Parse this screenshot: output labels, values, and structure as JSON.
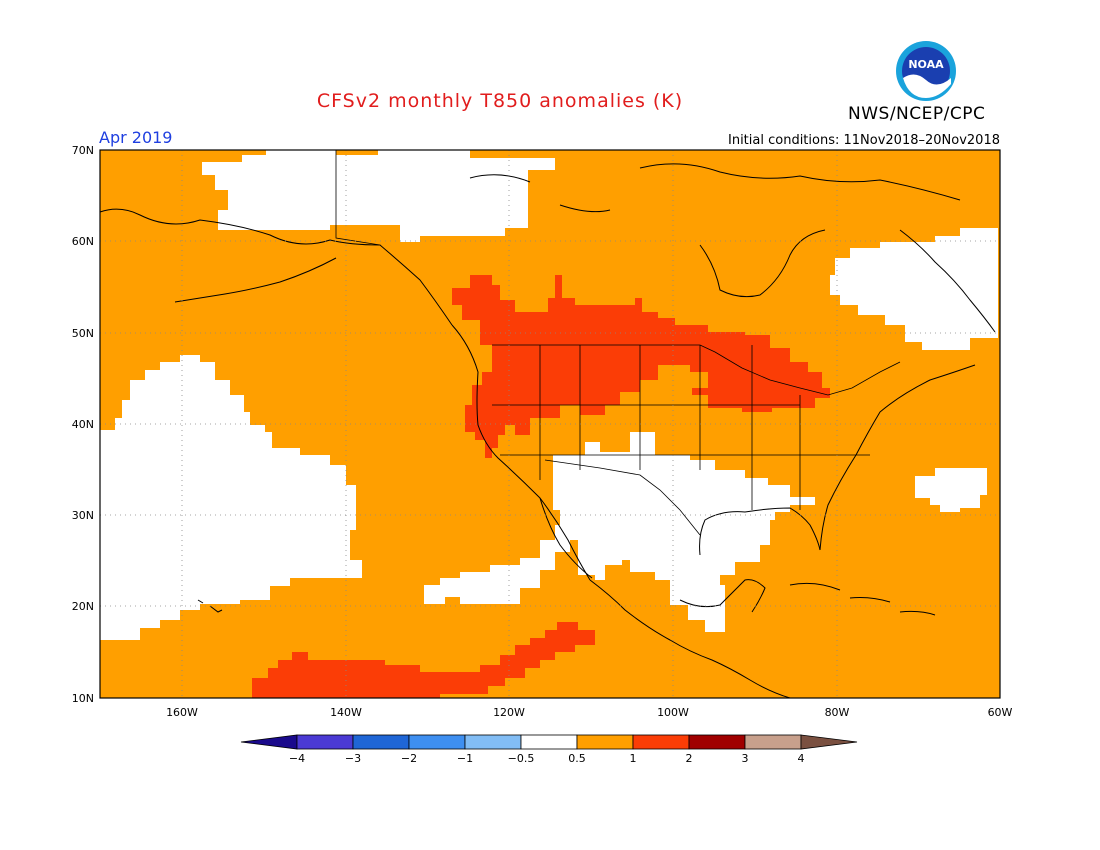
{
  "header": {
    "title": "CFSv2 monthly T850 anomalies (K)",
    "agency": "NWS/NCEP/CPC",
    "logo_text": "NOAA",
    "valid_month": "Apr 2019",
    "initial_conditions": "Initial conditions: 11Nov2018–20Nov2018"
  },
  "map": {
    "lon_range": [
      -170,
      -60
    ],
    "lat_range": [
      10,
      70
    ],
    "lat_ticks": [
      "10N",
      "20N",
      "30N",
      "40N",
      "50N",
      "60N",
      "70N"
    ],
    "lon_ticks": [
      "160W",
      "140W",
      "120W",
      "100W",
      "80W",
      "60W"
    ],
    "background_category": "0.5 to 1"
  },
  "colorbar": {
    "colors": [
      "#1a0a8c",
      "#4b3ad4",
      "#1f66d6",
      "#3e8ff0",
      "#82bdf5",
      "#ffffff",
      "#ff9f00",
      "#fb3d06",
      "#a00000",
      "#c8a08c",
      "#7a5040"
    ],
    "labels": [
      "−4",
      "−3",
      "−2",
      "−1",
      "−0.5",
      "0.5",
      "1",
      "2",
      "3",
      "4"
    ]
  },
  "colors": {
    "orange": "#ff9f00",
    "red": "#fb3d06",
    "white": "#ffffff",
    "title": "#e11d1d",
    "month": "#1f3fe0"
  }
}
